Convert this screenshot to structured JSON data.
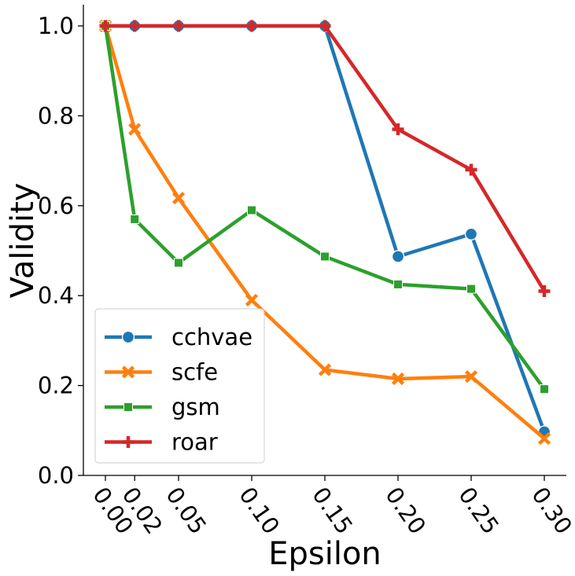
{
  "chart_data": {
    "type": "line",
    "xlabel": "Epsilon",
    "ylabel": "Validity",
    "xlim": [
      0.0,
      0.3
    ],
    "ylim": [
      0.0,
      1.0
    ],
    "x": [
      0.0,
      0.02,
      0.05,
      0.1,
      0.15,
      0.2,
      0.25,
      0.3
    ],
    "x_tick_labels": [
      "0.00",
      "0.02",
      "0.05",
      "0.10",
      "0.15",
      "0.20",
      "0.25",
      "0.30"
    ],
    "y_ticks": [
      0.0,
      0.2,
      0.4,
      0.6,
      0.8,
      1.0
    ],
    "y_tick_labels": [
      "0.0",
      "0.2",
      "0.4",
      "0.6",
      "0.8",
      "1.0"
    ],
    "grid": false,
    "legend_position": "lower-left",
    "series": [
      {
        "name": "cchvae",
        "color": "#1f77b4",
        "marker": "circle",
        "values": [
          1.0,
          1.0,
          1.0,
          1.0,
          1.0,
          0.487,
          0.537,
          0.097
        ]
      },
      {
        "name": "scfe",
        "color": "#ff7f0e",
        "marker": "x",
        "values": [
          1.0,
          0.77,
          0.617,
          0.39,
          0.235,
          0.215,
          0.22,
          0.082
        ]
      },
      {
        "name": "gsm",
        "color": "#2ca02c",
        "marker": "square",
        "values": [
          1.0,
          0.57,
          0.473,
          0.59,
          0.487,
          0.425,
          0.415,
          0.192
        ]
      },
      {
        "name": "roar",
        "color": "#d62728",
        "marker": "plus",
        "values": [
          1.0,
          1.0,
          1.0,
          1.0,
          1.0,
          0.77,
          0.68,
          0.41
        ]
      }
    ]
  }
}
